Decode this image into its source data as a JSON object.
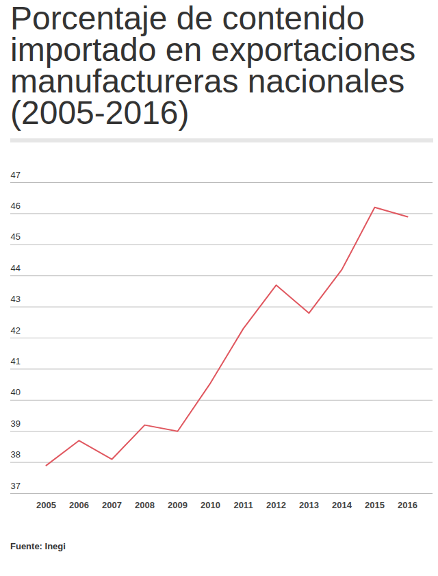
{
  "chart_data": {
    "type": "line",
    "title": "Porcentaje de contenido importado en exportaciones manufactureras nacionales (2005-2016)",
    "source": "Fuente: Inegi",
    "categories": [
      "2005",
      "2006",
      "2007",
      "2008",
      "2009",
      "2010",
      "2011",
      "2012",
      "2013",
      "2014",
      "2015",
      "2016"
    ],
    "values": [
      37.9,
      38.7,
      38.1,
      39.2,
      39.0,
      40.55,
      42.3,
      43.7,
      42.8,
      44.2,
      46.2,
      45.9
    ],
    "color": "#e0575f",
    "ylim": [
      37,
      47
    ],
    "yticks": [
      37,
      38,
      39,
      40,
      41,
      42,
      43,
      44,
      45,
      46,
      47
    ],
    "grid": true
  }
}
